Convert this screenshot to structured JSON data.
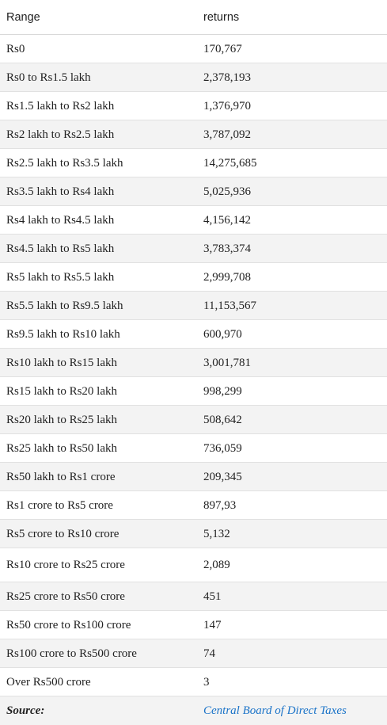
{
  "table": {
    "headers": [
      "Range",
      "returns"
    ],
    "rows": [
      [
        "Rs0",
        "170,767"
      ],
      [
        "Rs0 to Rs1.5 lakh",
        "2,378,193"
      ],
      [
        "Rs1.5 lakh to Rs2 lakh",
        "1,376,970"
      ],
      [
        "Rs2 lakh to Rs2.5 lakh",
        "3,787,092"
      ],
      [
        "Rs2.5 lakh to Rs3.5 lakh",
        "14,275,685"
      ],
      [
        "Rs3.5 lakh to Rs4 lakh",
        "5,025,936"
      ],
      [
        "Rs4 lakh to Rs4.5 lakh",
        "4,156,142"
      ],
      [
        "Rs4.5 lakh to Rs5 lakh",
        "3,783,374"
      ],
      [
        "Rs5 lakh to Rs5.5 lakh",
        "2,999,708"
      ],
      [
        "Rs5.5 lakh to Rs9.5 lakh",
        "11,153,567"
      ],
      [
        "Rs9.5 lakh to Rs10 lakh",
        "600,970"
      ],
      [
        "Rs10 lakh to Rs15 lakh",
        "3,001,781"
      ],
      [
        "Rs15 lakh to Rs20 lakh",
        "998,299"
      ],
      [
        "Rs20 lakh to Rs25 lakh",
        "508,642"
      ],
      [
        "Rs25 lakh to Rs50 lakh",
        "736,059"
      ],
      [
        "Rs50 lakh to Rs1 crore",
        "209,345"
      ],
      [
        "Rs1 crore to Rs5 crore",
        "897,93"
      ],
      [
        "Rs5 crore to Rs10 crore",
        "5,132"
      ],
      [
        "Rs10 crore to Rs25 crore",
        "2,089"
      ],
      [
        "Rs25 crore to Rs50 crore",
        "451"
      ],
      [
        "Rs50 crore to Rs100 crore",
        "147"
      ],
      [
        "Rs100 crore to Rs500 crore",
        "74"
      ],
      [
        "Over Rs500 crore",
        "3"
      ]
    ],
    "source_label": "Source:",
    "source_link": "Central Board of Direct Taxes"
  }
}
